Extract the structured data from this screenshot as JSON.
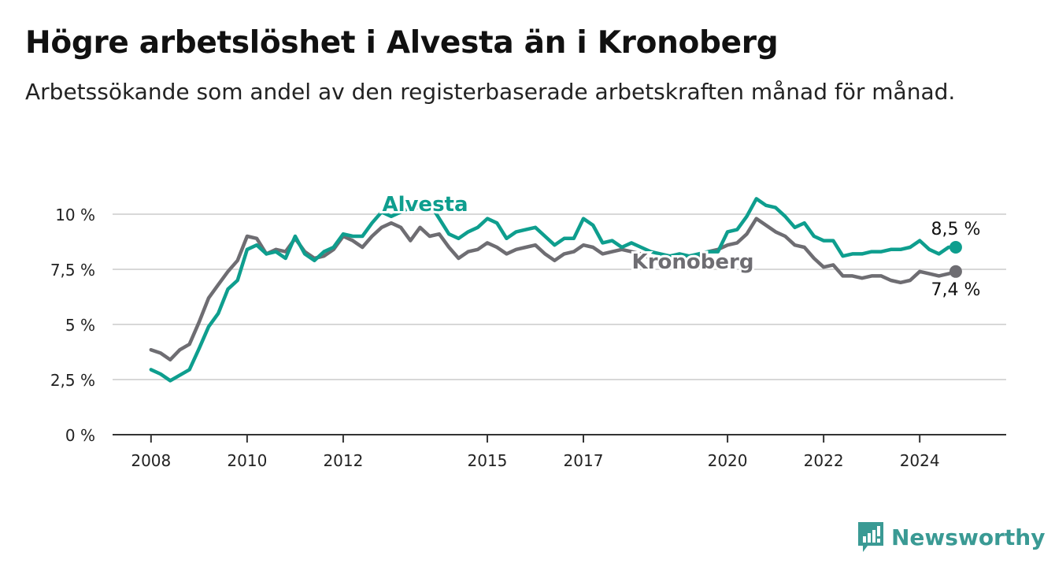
{
  "header": {
    "title": "Högre arbetslöshet i Alvesta än i Kronoberg",
    "subtitle": "Arbetssökande som andel av den registerbaserade arbetskraften månad för månad."
  },
  "brand": {
    "name": "Newsworthy",
    "icon": "newsworthy-logo-icon",
    "color": "#3a9a94"
  },
  "chart_data": {
    "type": "line",
    "title": "Högre arbetslöshet i Alvesta än i Kronoberg",
    "subtitle": "Arbetssökande som andel av den registerbaserade arbetskraften månad för månad.",
    "ylim": [
      0,
      10
    ],
    "xlim": [
      2007.2,
      2025.8
    ],
    "yticks": [
      0,
      2.5,
      5,
      7.5,
      10
    ],
    "ytick_labels": [
      "0 %",
      "2,5 %",
      "5 %",
      "7,5 %",
      "10 %"
    ],
    "xticks": [
      2008,
      2010,
      2012,
      2015,
      2017,
      2020,
      2022,
      2024
    ],
    "xtick_labels": [
      "2008",
      "2010",
      "2012",
      "2015",
      "2017",
      "2020",
      "2022",
      "2024"
    ],
    "grid": true,
    "legend": "direct labels on lines",
    "series": [
      {
        "name": "Alvesta",
        "color": "#0e9e8e",
        "end_label": "8,5 %",
        "points": [
          [
            2008.0,
            2.95
          ],
          [
            2008.2,
            2.75
          ],
          [
            2008.4,
            2.45
          ],
          [
            2008.6,
            2.7
          ],
          [
            2008.8,
            2.95
          ],
          [
            2009.0,
            3.9
          ],
          [
            2009.2,
            4.9
          ],
          [
            2009.4,
            5.5
          ],
          [
            2009.6,
            6.6
          ],
          [
            2009.8,
            7.0
          ],
          [
            2010.0,
            8.4
          ],
          [
            2010.2,
            8.6
          ],
          [
            2010.4,
            8.2
          ],
          [
            2010.6,
            8.3
          ],
          [
            2010.8,
            8.0
          ],
          [
            2011.0,
            9.0
          ],
          [
            2011.2,
            8.2
          ],
          [
            2011.4,
            7.9
          ],
          [
            2011.6,
            8.3
          ],
          [
            2011.8,
            8.5
          ],
          [
            2012.0,
            9.1
          ],
          [
            2012.2,
            9.0
          ],
          [
            2012.4,
            9.0
          ],
          [
            2012.6,
            9.6
          ],
          [
            2012.8,
            10.1
          ],
          [
            2013.0,
            9.9
          ],
          [
            2013.2,
            10.1
          ],
          [
            2013.4,
            10.3
          ],
          [
            2013.6,
            10.3
          ],
          [
            2013.8,
            10.5
          ],
          [
            2014.0,
            9.8
          ],
          [
            2014.2,
            9.1
          ],
          [
            2014.4,
            8.9
          ],
          [
            2014.6,
            9.2
          ],
          [
            2014.8,
            9.4
          ],
          [
            2015.0,
            9.8
          ],
          [
            2015.2,
            9.6
          ],
          [
            2015.4,
            8.9
          ],
          [
            2015.6,
            9.2
          ],
          [
            2015.8,
            9.3
          ],
          [
            2016.0,
            9.4
          ],
          [
            2016.2,
            9.0
          ],
          [
            2016.4,
            8.6
          ],
          [
            2016.6,
            8.9
          ],
          [
            2016.8,
            8.9
          ],
          [
            2017.0,
            9.8
          ],
          [
            2017.2,
            9.5
          ],
          [
            2017.4,
            8.7
          ],
          [
            2017.6,
            8.8
          ],
          [
            2017.8,
            8.5
          ],
          [
            2018.0,
            8.7
          ],
          [
            2018.2,
            8.5
          ],
          [
            2018.4,
            8.3
          ],
          [
            2018.6,
            8.2
          ],
          [
            2018.8,
            8.1
          ],
          [
            2019.0,
            8.2
          ],
          [
            2019.2,
            8.1
          ],
          [
            2019.4,
            8.2
          ],
          [
            2019.6,
            8.3
          ],
          [
            2019.8,
            8.3
          ],
          [
            2020.0,
            9.2
          ],
          [
            2020.2,
            9.3
          ],
          [
            2020.4,
            9.9
          ],
          [
            2020.6,
            10.7
          ],
          [
            2020.8,
            10.4
          ],
          [
            2021.0,
            10.3
          ],
          [
            2021.2,
            9.9
          ],
          [
            2021.4,
            9.4
          ],
          [
            2021.6,
            9.6
          ],
          [
            2021.8,
            9.0
          ],
          [
            2022.0,
            8.8
          ],
          [
            2022.2,
            8.8
          ],
          [
            2022.4,
            8.1
          ],
          [
            2022.6,
            8.2
          ],
          [
            2022.8,
            8.2
          ],
          [
            2023.0,
            8.3
          ],
          [
            2023.2,
            8.3
          ],
          [
            2023.4,
            8.4
          ],
          [
            2023.6,
            8.4
          ],
          [
            2023.8,
            8.5
          ],
          [
            2024.0,
            8.8
          ],
          [
            2024.2,
            8.4
          ],
          [
            2024.4,
            8.2
          ],
          [
            2024.6,
            8.5
          ],
          [
            2024.75,
            8.5
          ]
        ]
      },
      {
        "name": "Kronoberg",
        "color": "#6e6d72",
        "end_label": "7,4 %",
        "points": [
          [
            2008.0,
            3.85
          ],
          [
            2008.2,
            3.7
          ],
          [
            2008.4,
            3.4
          ],
          [
            2008.6,
            3.85
          ],
          [
            2008.8,
            4.1
          ],
          [
            2009.0,
            5.1
          ],
          [
            2009.2,
            6.2
          ],
          [
            2009.4,
            6.8
          ],
          [
            2009.6,
            7.4
          ],
          [
            2009.8,
            7.9
          ],
          [
            2010.0,
            9.0
          ],
          [
            2010.2,
            8.9
          ],
          [
            2010.4,
            8.2
          ],
          [
            2010.6,
            8.4
          ],
          [
            2010.8,
            8.3
          ],
          [
            2011.0,
            8.9
          ],
          [
            2011.2,
            8.3
          ],
          [
            2011.4,
            8.0
          ],
          [
            2011.6,
            8.1
          ],
          [
            2011.8,
            8.4
          ],
          [
            2012.0,
            9.0
          ],
          [
            2012.2,
            8.8
          ],
          [
            2012.4,
            8.5
          ],
          [
            2012.6,
            9.0
          ],
          [
            2012.8,
            9.4
          ],
          [
            2013.0,
            9.6
          ],
          [
            2013.2,
            9.4
          ],
          [
            2013.4,
            8.8
          ],
          [
            2013.6,
            9.4
          ],
          [
            2013.8,
            9.0
          ],
          [
            2014.0,
            9.1
          ],
          [
            2014.2,
            8.5
          ],
          [
            2014.4,
            8.0
          ],
          [
            2014.6,
            8.3
          ],
          [
            2014.8,
            8.4
          ],
          [
            2015.0,
            8.7
          ],
          [
            2015.2,
            8.5
          ],
          [
            2015.4,
            8.2
          ],
          [
            2015.6,
            8.4
          ],
          [
            2015.8,
            8.5
          ],
          [
            2016.0,
            8.6
          ],
          [
            2016.2,
            8.2
          ],
          [
            2016.4,
            7.9
          ],
          [
            2016.6,
            8.2
          ],
          [
            2016.8,
            8.3
          ],
          [
            2017.0,
            8.6
          ],
          [
            2017.2,
            8.5
          ],
          [
            2017.4,
            8.2
          ],
          [
            2017.6,
            8.3
          ],
          [
            2017.8,
            8.4
          ],
          [
            2018.0,
            8.3
          ],
          [
            2018.2,
            8.2
          ],
          [
            2018.4,
            8.0
          ],
          [
            2018.6,
            8.0
          ],
          [
            2018.8,
            7.9
          ],
          [
            2019.0,
            8.0
          ],
          [
            2019.2,
            8.0
          ],
          [
            2019.4,
            8.1
          ],
          [
            2019.6,
            8.3
          ],
          [
            2019.8,
            8.4
          ],
          [
            2020.0,
            8.6
          ],
          [
            2020.2,
            8.7
          ],
          [
            2020.4,
            9.1
          ],
          [
            2020.6,
            9.8
          ],
          [
            2020.8,
            9.5
          ],
          [
            2021.0,
            9.2
          ],
          [
            2021.2,
            9.0
          ],
          [
            2021.4,
            8.6
          ],
          [
            2021.6,
            8.5
          ],
          [
            2021.8,
            8.0
          ],
          [
            2022.0,
            7.6
          ],
          [
            2022.2,
            7.7
          ],
          [
            2022.4,
            7.2
          ],
          [
            2022.6,
            7.2
          ],
          [
            2022.8,
            7.1
          ],
          [
            2023.0,
            7.2
          ],
          [
            2023.2,
            7.2
          ],
          [
            2023.4,
            7.0
          ],
          [
            2023.6,
            6.9
          ],
          [
            2023.8,
            7.0
          ],
          [
            2024.0,
            7.4
          ],
          [
            2024.2,
            7.3
          ],
          [
            2024.4,
            7.2
          ],
          [
            2024.6,
            7.3
          ],
          [
            2024.75,
            7.4
          ]
        ]
      }
    ]
  }
}
